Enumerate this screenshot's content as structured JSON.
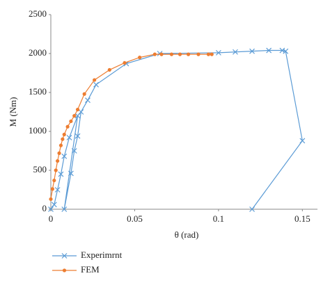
{
  "chart_data": {
    "type": "line",
    "xlabel": "θ (rad)",
    "ylabel": "M (Nm)",
    "xlim": [
      0,
      0.159
    ],
    "ylim": [
      0,
      2500
    ],
    "xticks": [
      0,
      0.05,
      0.1,
      0.15
    ],
    "yticks": [
      0,
      500,
      1000,
      1500,
      2000,
      2500
    ],
    "grid": false,
    "legend": "bottom-left",
    "series": [
      {
        "name": "Experimrnt",
        "color": "#5b9bd5",
        "marker": "x",
        "x": [
          0,
          0.002,
          0.004,
          0.006,
          0.008,
          0.011,
          0.016,
          0.008,
          0.012,
          0.014,
          0.016,
          0.018,
          0.022,
          0.027,
          0.045,
          0.065,
          0.1,
          0.11,
          0.12,
          0.13,
          0.138,
          0.14,
          0.15,
          0.12
        ],
        "values": [
          0,
          60,
          250,
          450,
          680,
          920,
          1200,
          0,
          460,
          750,
          940,
          1250,
          1400,
          1600,
          1870,
          2000,
          2010,
          2020,
          2030,
          2040,
          2040,
          2030,
          880,
          0
        ]
      },
      {
        "name": "FEM",
        "color": "#ed7d31",
        "marker": "o",
        "x": [
          0,
          0.001,
          0.002,
          0.003,
          0.004,
          0.005,
          0.006,
          0.007,
          0.008,
          0.01,
          0.012,
          0.014,
          0.016,
          0.02,
          0.026,
          0.035,
          0.044,
          0.053,
          0.062,
          0.066,
          0.072,
          0.077,
          0.082,
          0.088,
          0.094,
          0.096
        ],
        "values": [
          130,
          260,
          370,
          500,
          620,
          720,
          820,
          900,
          960,
          1060,
          1130,
          1200,
          1280,
          1480,
          1660,
          1790,
          1880,
          1950,
          1990,
          1990,
          1990,
          1990,
          1990,
          1990,
          1990,
          1990
        ]
      }
    ]
  }
}
